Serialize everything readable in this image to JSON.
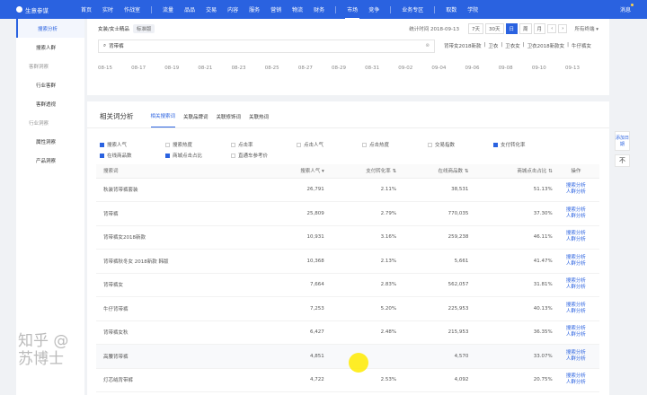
{
  "nav": {
    "logo": "生意参谋",
    "items": [
      "首页",
      "实时",
      "作战室",
      "流量",
      "品品",
      "交易",
      "内容",
      "服务",
      "营销",
      "物流",
      "财务",
      "市场",
      "竞争",
      "业务专区",
      "取数",
      "学院"
    ],
    "active": "市场",
    "user": "消息"
  },
  "sidebar": {
    "items": [
      {
        "label": "搜索分析",
        "selected": true
      },
      {
        "label": "搜索人群"
      },
      {
        "label": "客群洞察",
        "group": true
      },
      {
        "label": "行业客群"
      },
      {
        "label": "客群透视"
      },
      {
        "label": "行业洞察",
        "group": true
      },
      {
        "label": "属性洞察"
      },
      {
        "label": "产品洞察"
      }
    ]
  },
  "filter": {
    "category": "女装/女士精品",
    "edition": "标准版",
    "stat_time": "统计时间 2018-09-13",
    "periods": [
      "7天",
      "30天",
      "日",
      "周",
      "月"
    ],
    "active_period": "日",
    "terminal": "所有终端"
  },
  "search": {
    "value": "背带裤",
    "suggestions": [
      "背带女2018新款",
      "卫衣",
      "卫衣女",
      "卫衣2018新款女",
      "牛仔裤女"
    ]
  },
  "dates": [
    "08-15",
    "08-17",
    "08-19",
    "08-21",
    "08-23",
    "08-25",
    "08-27",
    "08-29",
    "08-31",
    "09-02",
    "09-04",
    "09-06",
    "09-08",
    "09-10",
    "09-13"
  ],
  "analysis": {
    "title": "相关词分析",
    "tabs": [
      "相关搜索词",
      "关联品牌词",
      "关联修饰词",
      "关联热词"
    ],
    "active_tab": 0,
    "checks": [
      {
        "label": "搜索人气",
        "on": true
      },
      {
        "label": "搜索热度",
        "on": false
      },
      {
        "label": "点击率",
        "on": false
      },
      {
        "label": "点击人气",
        "on": false
      },
      {
        "label": "点击热度",
        "on": false
      },
      {
        "label": "交易指数",
        "on": false
      },
      {
        "label": "支付转化率",
        "on": true
      },
      {
        "label": "在线商品数",
        "on": true
      },
      {
        "label": "商城点击占比",
        "on": true
      },
      {
        "label": "直通车参考价",
        "on": false
      }
    ],
    "columns": [
      "搜索词",
      "搜索人气 ▾",
      "支付转化率 ⇅",
      "在线商品数 ⇅",
      "商城点击占比 ⇅",
      "操作"
    ],
    "action_labels": [
      "搜索分析",
      "人群分析"
    ],
    "rows": [
      [
        "秋装背带裤套装",
        "26,791",
        "2.11%",
        "38,531",
        "51.13%"
      ],
      [
        "背带裤",
        "25,809",
        "2.79%",
        "770,035",
        "37.30%"
      ],
      [
        "背带裤女2018新款",
        "10,931",
        "3.16%",
        "259,238",
        "46.11%"
      ],
      [
        "背带裤秋冬女 2018新款 韩版",
        "10,368",
        "2.13%",
        "5,661",
        "41.47%"
      ],
      [
        "背带裤女",
        "7,664",
        "2.83%",
        "562,057",
        "31.81%"
      ],
      [
        "牛仔背带裤",
        "7,253",
        "5.20%",
        "225,953",
        "40.13%"
      ],
      [
        "背带裤女秋",
        "6,427",
        "2.48%",
        "215,953",
        "36.35%"
      ],
      [
        "高腰背带裤",
        "4,851",
        "",
        "4,570",
        "33.07%"
      ],
      [
        "灯芯绒背带裤",
        "4,722",
        "2.53%",
        "4,092",
        "20.75%"
      ]
    ]
  },
  "float": {
    "btn1": "添加日期",
    "btn2": "不"
  },
  "watermark": "知乎 @苏博士",
  "colors": {
    "brand": "#2a62e0"
  }
}
